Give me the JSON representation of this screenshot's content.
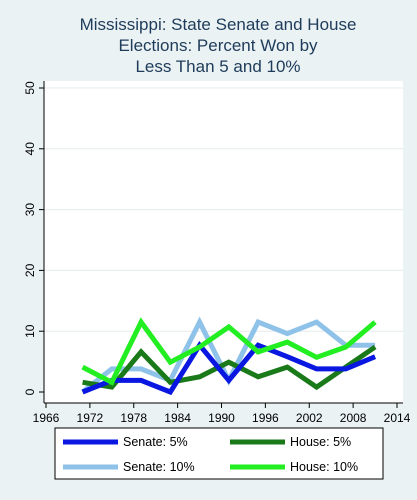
{
  "chart_data": {
    "type": "line",
    "title": [
      "Mississippi: State Senate and House",
      "Elections: Percent Won by",
      "Less Than 5 and 10%"
    ],
    "xlabel": "",
    "ylabel": "",
    "xlim": [
      1966,
      2014
    ],
    "ylim": [
      0,
      50
    ],
    "xticks": [
      1966,
      1972,
      1978,
      1984,
      1990,
      1996,
      2002,
      2008,
      2014
    ],
    "yticks": [
      0,
      10,
      20,
      30,
      40,
      50
    ],
    "grid": "horizontal",
    "legend_position": "bottom",
    "series": [
      {
        "name": "Senate: 10%",
        "color": "#8ec2e8",
        "points": [
          [
            1971,
            0
          ],
          [
            1975,
            3.8
          ],
          [
            1979,
            3.8
          ],
          [
            1983,
            1.9
          ],
          [
            1987,
            11.5
          ],
          [
            1991,
            1.9
          ],
          [
            1995,
            11.5
          ],
          [
            1999,
            9.6
          ],
          [
            2003,
            11.5
          ],
          [
            2007,
            7.7
          ],
          [
            2011,
            7.7
          ]
        ]
      },
      {
        "name": "House: 5%",
        "color": "#1a7a1a",
        "points": [
          [
            1971,
            1.6
          ],
          [
            1975,
            0.8
          ],
          [
            1979,
            6.6
          ],
          [
            1983,
            1.6
          ],
          [
            1987,
            2.5
          ],
          [
            1991,
            4.9
          ],
          [
            1995,
            2.5
          ],
          [
            1999,
            4.1
          ],
          [
            2003,
            0.8
          ],
          [
            2007,
            4.1
          ],
          [
            2011,
            7.4
          ]
        ]
      },
      {
        "name": "Senate: 5%",
        "color": "#0a17e0",
        "points": [
          [
            1971,
            0
          ],
          [
            1975,
            1.9
          ],
          [
            1979,
            1.9
          ],
          [
            1983,
            0
          ],
          [
            1987,
            7.7
          ],
          [
            1991,
            1.9
          ],
          [
            1995,
            7.7
          ],
          [
            1999,
            5.8
          ],
          [
            2003,
            3.8
          ],
          [
            2007,
            3.8
          ],
          [
            2011,
            5.8
          ]
        ]
      },
      {
        "name": "House: 10%",
        "color": "#22ee22",
        "points": [
          [
            1971,
            4.1
          ],
          [
            1975,
            1.6
          ],
          [
            1979,
            11.5
          ],
          [
            1983,
            4.9
          ],
          [
            1987,
            7.4
          ],
          [
            1991,
            10.7
          ],
          [
            1995,
            6.6
          ],
          [
            1999,
            8.2
          ],
          [
            2003,
            5.7
          ],
          [
            2007,
            7.4
          ],
          [
            2011,
            11.5
          ]
        ]
      }
    ],
    "legend": [
      {
        "label": "Senate: 5%",
        "color": "#0a17e0"
      },
      {
        "label": "House: 5%",
        "color": "#1a7a1a"
      },
      {
        "label": "Senate: 10%",
        "color": "#8ec2e8"
      },
      {
        "label": "House: 10%",
        "color": "#22ee22"
      }
    ]
  }
}
